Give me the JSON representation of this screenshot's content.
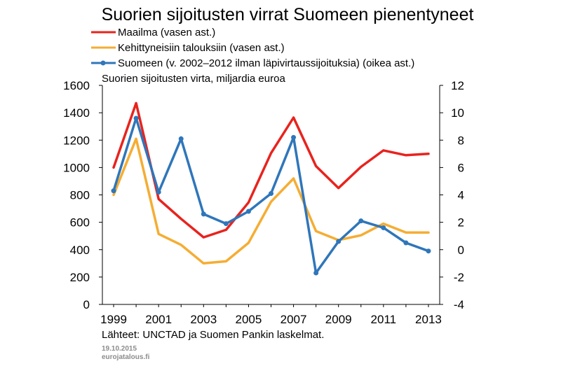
{
  "chart_data": {
    "type": "line",
    "title": "Suorien sijoitusten virrat Suomeen pienentyneet",
    "unit_label": "Suorien sijoitusten virta, miljardia euroa",
    "x": [
      1999,
      2000,
      2001,
      2002,
      2003,
      2004,
      2005,
      2006,
      2007,
      2008,
      2009,
      2010,
      2011,
      2012,
      2013
    ],
    "x_tick_labels": [
      "1999",
      "2001",
      "2003",
      "2005",
      "2007",
      "2009",
      "2011",
      "2013"
    ],
    "x_tick_values": [
      1999,
      2001,
      2003,
      2005,
      2007,
      2009,
      2011,
      2013
    ],
    "y_left": {
      "lim": [
        0,
        1600
      ],
      "ticks": [
        "0",
        "200",
        "400",
        "600",
        "800",
        "1000",
        "1200",
        "1400",
        "1600"
      ]
    },
    "y_right": {
      "lim": [
        -4,
        12
      ],
      "ticks": [
        "-4",
        "-2",
        "0",
        "2",
        "4",
        "6",
        "8",
        "10",
        "12"
      ]
    },
    "grid": false,
    "legend_position": "top",
    "series": [
      {
        "name": "Maailma (vasen ast.)",
        "axis": "left",
        "color": "#e8231e",
        "marker": false,
        "values": [
          1000,
          1470,
          770,
          625,
          490,
          545,
          745,
          1105,
          1365,
          1010,
          850,
          1005,
          1125,
          1090,
          1100
        ]
      },
      {
        "name": "Kehittyneisiin talouksiin (vasen ast.)",
        "axis": "left",
        "color": "#f5ad33",
        "marker": false,
        "values": [
          800,
          1210,
          515,
          435,
          300,
          315,
          450,
          750,
          920,
          535,
          470,
          505,
          590,
          525,
          525
        ]
      },
      {
        "name": "Suomeen (v. 2002–2012 ilman läpivirtaussijoituksia) (oikea ast.)",
        "axis": "right",
        "color": "#2f76ba",
        "marker": true,
        "values": [
          4.3,
          9.6,
          4.2,
          8.1,
          2.6,
          1.9,
          2.8,
          4.1,
          8.2,
          -1.7,
          0.6,
          2.1,
          1.6,
          0.5,
          -0.1
        ]
      }
    ],
    "source": "Lähteet: UNCTAD ja Suomen Pankin laskelmat.",
    "date": "19.10.2015",
    "site": "eurojatalous.fi"
  }
}
